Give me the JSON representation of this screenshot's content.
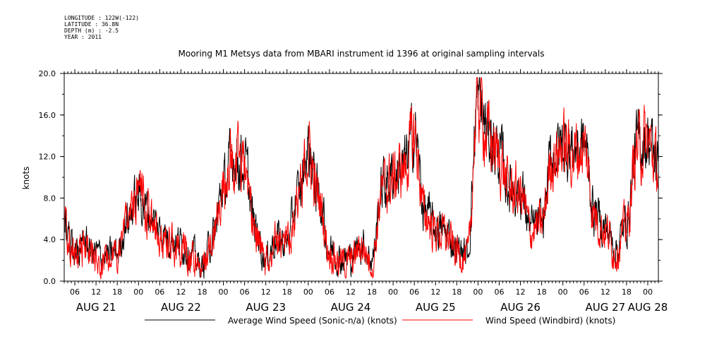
{
  "metadata": [
    "LONGITUDE : 122W(-122)",
    "LATITUDE : 36.8N",
    "DEPTH (m) : -2.5",
    "YEAR : 2011"
  ],
  "chart_data": {
    "type": "line",
    "title": "Mooring M1 Metsys data from MBARI instrument id 1396 at original sampling intervals",
    "ylabel": "knots",
    "xlabel": "",
    "ylim": [
      0,
      20
    ],
    "yticks": [
      "0.0",
      "4.0",
      "8.0",
      "12.0",
      "16.0",
      "20.0"
    ],
    "x_start_hour": 3,
    "x_end_hour": 171,
    "x_hour_ticks": [
      {
        "hour": 6,
        "label": "06"
      },
      {
        "hour": 12,
        "label": "12"
      },
      {
        "hour": 18,
        "label": "18"
      },
      {
        "hour": 24,
        "label": "00"
      },
      {
        "hour": 30,
        "label": "06"
      },
      {
        "hour": 36,
        "label": "12"
      },
      {
        "hour": 42,
        "label": "18"
      },
      {
        "hour": 48,
        "label": "00"
      },
      {
        "hour": 54,
        "label": "06"
      },
      {
        "hour": 60,
        "label": "12"
      },
      {
        "hour": 66,
        "label": "18"
      },
      {
        "hour": 72,
        "label": "00"
      },
      {
        "hour": 78,
        "label": "06"
      },
      {
        "hour": 84,
        "label": "12"
      },
      {
        "hour": 90,
        "label": "18"
      },
      {
        "hour": 96,
        "label": "00"
      },
      {
        "hour": 102,
        "label": "06"
      },
      {
        "hour": 108,
        "label": "12"
      },
      {
        "hour": 114,
        "label": "18"
      },
      {
        "hour": 120,
        "label": "00"
      },
      {
        "hour": 126,
        "label": "06"
      },
      {
        "hour": 132,
        "label": "12"
      },
      {
        "hour": 138,
        "label": "18"
      },
      {
        "hour": 144,
        "label": "00"
      },
      {
        "hour": 150,
        "label": "06"
      },
      {
        "hour": 156,
        "label": "12"
      },
      {
        "hour": 162,
        "label": "18"
      },
      {
        "hour": 168,
        "label": "00"
      }
    ],
    "day_labels": [
      {
        "hour": 12,
        "label": "AUG 21"
      },
      {
        "hour": 36,
        "label": "AUG 22"
      },
      {
        "hour": 60,
        "label": "AUG 23"
      },
      {
        "hour": 84,
        "label": "AUG 24"
      },
      {
        "hour": 108,
        "label": "AUG 25"
      },
      {
        "hour": 132,
        "label": "AUG 26"
      },
      {
        "hour": 156,
        "label": "AUG 27"
      },
      {
        "hour": 168,
        "label": "AUG 28"
      }
    ],
    "series": [
      {
        "name": "Average Wind Speed (Sonic-n/a) (knots)",
        "color": "#000000"
      },
      {
        "name": "Wind Speed (Windbird) (knots)",
        "color": "#ff0000"
      }
    ],
    "envelope_hours": [
      3,
      6,
      9,
      12,
      15,
      18,
      21,
      24,
      27,
      30,
      33,
      36,
      39,
      42,
      45,
      48,
      51,
      54,
      57,
      60,
      63,
      66,
      69,
      72,
      75,
      78,
      81,
      84,
      87,
      90,
      93,
      96,
      99,
      102,
      105,
      108,
      111,
      114,
      117,
      120,
      123,
      126,
      129,
      132,
      135,
      138,
      141,
      144,
      147,
      150,
      153,
      156,
      159,
      162,
      165,
      168,
      171
    ],
    "envelope_knots": [
      5.2,
      2.8,
      3.2,
      2.5,
      2.2,
      2.6,
      6.0,
      8.0,
      6.5,
      4.8,
      4.0,
      3.5,
      2.5,
      1.2,
      4.0,
      9.0,
      12.0,
      11.0,
      5.0,
      2.0,
      4.0,
      3.5,
      8.0,
      12.5,
      8.0,
      3.0,
      2.0,
      2.0,
      3.5,
      2.0,
      9.0,
      10.0,
      11.0,
      14.0,
      6.5,
      5.0,
      4.5,
      3.0,
      2.5,
      17.5,
      14.0,
      12.0,
      9.0,
      8.5,
      5.0,
      5.5,
      12.0,
      13.0,
      12.5,
      13.0,
      6.5,
      5.0,
      3.0,
      5.5,
      13.0,
      13.5,
      11.0
    ]
  }
}
